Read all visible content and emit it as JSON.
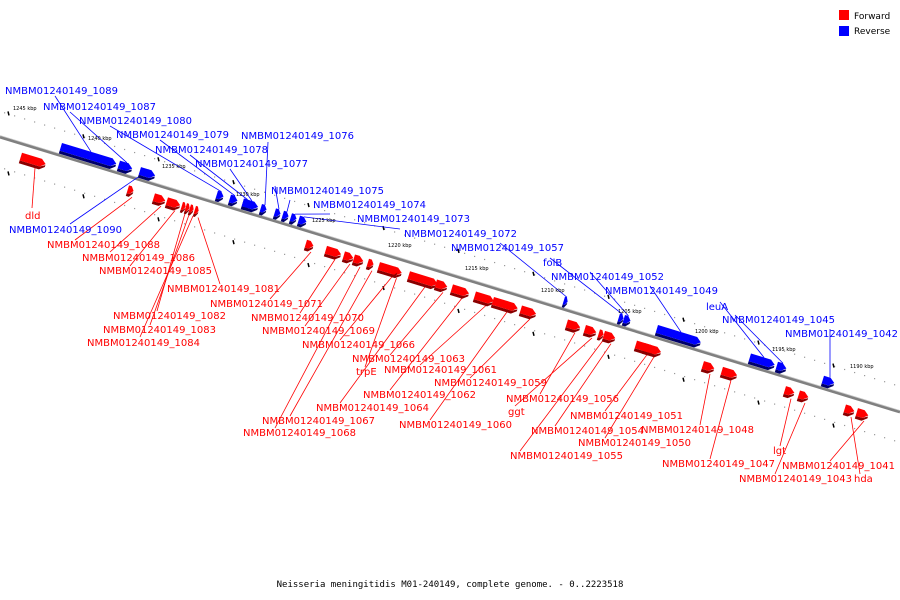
{
  "colors": {
    "forward": "#ff0000",
    "reverse": "#0000ff",
    "forward_dark": "#8a0000",
    "reverse_dark": "#00006a",
    "backbone": "#808080"
  },
  "legend": [
    {
      "label": "Forward",
      "strand": "forward"
    },
    {
      "label": "Reverse",
      "strand": "reverse"
    }
  ],
  "caption": "Neisseria meningitidis M01-240149, complete genome. - 0..2223518",
  "scale_ticks": [
    "1245 kbp",
    "1240 kbp",
    "1235 kbp",
    "1230 kbp",
    "1225 kbp",
    "1220 kbp",
    "1215 kbp",
    "1210 kbp",
    "1205 kbp",
    "1200 kbp",
    "1195 kbp",
    "1190 kbp"
  ],
  "features": [
    {
      "strand": "forward",
      "label": "dld",
      "len": 26
    },
    {
      "strand": "reverse",
      "label": "NMBM01240149_1089",
      "len": 58
    },
    {
      "strand": "reverse",
      "label": "NMBM01240149_1090",
      "len": 16
    },
    {
      "strand": "forward",
      "label": "NMBM01240149_1088",
      "len": 6
    },
    {
      "strand": "reverse",
      "label": "NMBM01240149_1087",
      "len": 14
    },
    {
      "strand": "forward",
      "label": "NMBM01240149_1086",
      "len": 12
    },
    {
      "strand": "forward",
      "label": "NMBM01240149_1085",
      "len": 14
    },
    {
      "strand": "reverse",
      "label": "NMBM01240149_1080",
      "len": 7
    },
    {
      "strand": "forward",
      "label": "NMBM01240149_1082",
      "len": 4
    },
    {
      "strand": "forward",
      "label": "NMBM01240149_1083",
      "len": 4
    },
    {
      "strand": "forward",
      "label": "NMBM01240149_1084",
      "len": 4
    },
    {
      "strand": "reverse",
      "label": "NMBM01240149_1079",
      "len": 8
    },
    {
      "strand": "forward",
      "label": "NMBM01240149_1081",
      "len": 4
    },
    {
      "strand": "reverse",
      "label": "NMBM01240149_1078",
      "len": 7
    },
    {
      "strand": "reverse",
      "label": "NMBM01240149_1077",
      "len": 16
    },
    {
      "strand": "reverse",
      "label": "NMBM01240149_1076",
      "len": 6
    },
    {
      "strand": "reverse",
      "label": "NMBM01240149_1075",
      "len": 6
    },
    {
      "strand": "reverse",
      "label": "NMBM01240149_1074",
      "len": 6
    },
    {
      "strand": "reverse",
      "label": "NMBM01240149_1073",
      "len": 6
    },
    {
      "strand": "reverse",
      "label": "NMBM01240149_1072",
      "len": 8
    },
    {
      "strand": "forward",
      "label": "NMBM01240149_1071",
      "len": 8
    },
    {
      "strand": "forward",
      "label": "NMBM01240149_1070",
      "len": 16
    },
    {
      "strand": "forward",
      "label": "NMBM01240149_1069",
      "len": 10
    },
    {
      "strand": "forward",
      "label": "NMBM01240149_1068",
      "len": 10
    },
    {
      "strand": "forward",
      "label": "NMBM01240149_1067",
      "len": 6
    },
    {
      "strand": "forward",
      "label": "NMBM01240149_1066",
      "len": 24
    },
    {
      "strand": "forward",
      "label": "trpE",
      "len": 5
    },
    {
      "strand": "forward",
      "label": "NMBM01240149_1064",
      "len": 30
    },
    {
      "strand": "forward",
      "label": "NMBM01240149_1063",
      "len": 12
    },
    {
      "strand": "forward",
      "label": "NMBM01240149_1062",
      "len": 18
    },
    {
      "strand": "forward",
      "label": "NMBM01240149_1061",
      "len": 20
    },
    {
      "strand": "forward",
      "label": "NMBM01240149_1060",
      "len": 26
    },
    {
      "strand": "reverse",
      "label": "NMBM01240149_1057",
      "len": 4
    },
    {
      "strand": "forward",
      "label": "NMBM01240149_1059",
      "len": 16
    },
    {
      "strand": "forward",
      "label": "NMBM01240149_1056",
      "len": 14
    },
    {
      "strand": "reverse",
      "label": "folB",
      "len": 5
    },
    {
      "strand": "forward",
      "label": "ggt",
      "len": 12
    },
    {
      "strand": "reverse",
      "label": "NMBM01240149_1052",
      "len": 7
    },
    {
      "strand": "forward",
      "label": "NMBM01240149_1055",
      "len": 5
    },
    {
      "strand": "forward",
      "label": "NMBM01240149_1054",
      "len": 12
    },
    {
      "strand": "reverse",
      "label": "NMBM01240149_1049",
      "len": 46
    },
    {
      "strand": "forward",
      "label": "NMBM01240149_1051",
      "len": 20
    },
    {
      "strand": "forward",
      "label": "NMBM01240149_1050",
      "len": 18
    },
    {
      "strand": "reverse",
      "label": "leuA",
      "len": 26
    },
    {
      "strand": "forward",
      "label": "NMBM01240149_1048",
      "len": 12
    },
    {
      "strand": "reverse",
      "label": "NMBM01240149_1045",
      "len": 10
    },
    {
      "strand": "forward",
      "label": "NMBM01240149_1047",
      "len": 16
    },
    {
      "strand": "reverse",
      "label": "NMBM01240149_1042",
      "len": 12
    },
    {
      "strand": "forward",
      "label": "lgt",
      "len": 10
    },
    {
      "strand": "forward",
      "label": "NMBM01240149_1043",
      "len": 10
    },
    {
      "strand": "forward",
      "label": "NMBM01240149_1041",
      "len": 12
    },
    {
      "strand": "forward",
      "label": "hda",
      "len": 10
    }
  ]
}
